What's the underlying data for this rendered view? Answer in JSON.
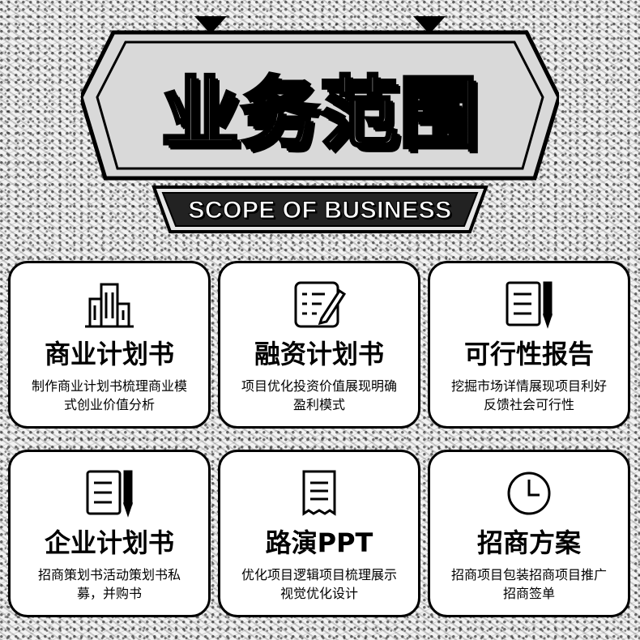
{
  "header": {
    "title": "业务范围",
    "subtitle": "SCOPE OF BUSINESS"
  },
  "cards": [
    {
      "title": "商业计划书",
      "desc": "制作商业计划书梳理商业模式创业价值分析",
      "icon": "building-icon"
    },
    {
      "title": "融资计划书",
      "desc": "项目优化投资价值展现明确盈利模式",
      "icon": "edit-document-icon"
    },
    {
      "title": "可行性报告",
      "desc": "挖掘市场详情展现项目利好反馈社会可行性",
      "icon": "document-pen-icon"
    },
    {
      "title": "企业计划书",
      "desc": "招商策划书活动策划书私募，并购书",
      "icon": "document-pen-icon"
    },
    {
      "title": "路演PPT",
      "desc": "优化项目逻辑项目梳理展示视觉优化设计",
      "icon": "receipt-icon"
    },
    {
      "title": "招商方案",
      "desc": "招商项目包装招商项目推广招商签单",
      "icon": "clock-icon"
    }
  ],
  "colors": {
    "ink": "#000000",
    "paper": "#ffffff"
  }
}
